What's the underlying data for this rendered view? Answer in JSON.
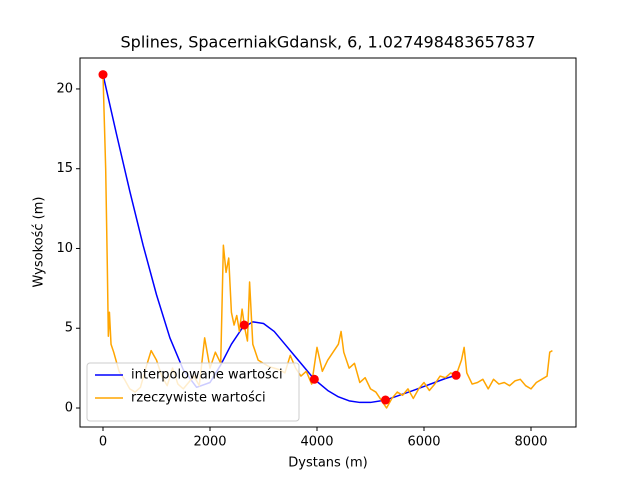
{
  "chart_data": {
    "type": "line",
    "title": "Splines, SpacerniakGdansk, 6, 1.027498483657837",
    "x_label": "Dystans (m)",
    "y_label": "Wysokość (m)",
    "xlim": [
      -430,
      8841
    ],
    "ylim": [
      -1.19,
      21.94
    ],
    "xticks": [
      0,
      2000,
      4000,
      6000,
      8000
    ],
    "yticks": [
      0,
      5,
      10,
      15,
      20
    ],
    "legend": "lower left",
    "series": [
      {
        "name": "interpolowane wartości",
        "color": "#0000ff",
        "type": "line",
        "x": [
          0,
          250,
          500,
          750,
          1000,
          1250,
          1500,
          1750,
          2000,
          2200,
          2400,
          2600,
          2800,
          3000,
          3200,
          3400,
          3600,
          3800,
          3950,
          4200,
          4400,
          4600,
          4800,
          5000,
          5280,
          5500,
          5800,
          6000,
          6200,
          6400,
          6600
        ],
        "values": [
          20.9,
          17.2,
          13.6,
          10.2,
          7.1,
          4.4,
          2.4,
          1.3,
          1.6,
          2.7,
          4.0,
          5.0,
          5.4,
          5.3,
          4.8,
          4.0,
          3.2,
          2.4,
          1.8,
          1.1,
          0.7,
          0.45,
          0.35,
          0.35,
          0.5,
          0.75,
          1.1,
          1.35,
          1.6,
          1.85,
          2.05
        ]
      },
      {
        "name": "rzeczywiste wartości",
        "color": "#ffa500",
        "type": "line",
        "x": [
          0,
          50,
          80,
          100,
          120,
          150,
          200,
          300,
          400,
          500,
          600,
          700,
          800,
          900,
          1000,
          1100,
          1200,
          1300,
          1400,
          1500,
          1600,
          1700,
          1800,
          1900,
          2000,
          2100,
          2200,
          2250,
          2300,
          2350,
          2400,
          2450,
          2500,
          2550,
          2600,
          2650,
          2700,
          2740,
          2800,
          2900,
          3000,
          3100,
          3200,
          3300,
          3400,
          3500,
          3600,
          3700,
          3800,
          3900,
          4000,
          4100,
          4200,
          4300,
          4400,
          4450,
          4500,
          4600,
          4700,
          4800,
          4900,
          5000,
          5100,
          5200,
          5300,
          5400,
          5500,
          5600,
          5700,
          5800,
          5900,
          6000,
          6100,
          6200,
          6300,
          6400,
          6500,
          6600,
          6700,
          6750,
          6800,
          6900,
          7000,
          7100,
          7200,
          7300,
          7400,
          7500,
          7600,
          7700,
          7800,
          7900,
          8000,
          8100,
          8200,
          8300,
          8350,
          8400
        ],
        "values": [
          20.9,
          15,
          9,
          4.5,
          6,
          4,
          3.5,
          2.3,
          1.8,
          1.2,
          1.0,
          1.3,
          2.5,
          3.6,
          3.0,
          2.0,
          1.4,
          2.5,
          1.5,
          1.2,
          1.6,
          2.0,
          1.4,
          4.4,
          2.5,
          3.5,
          2.8,
          10.2,
          8.5,
          9.4,
          6.0,
          5.2,
          5.8,
          4.8,
          6.2,
          5.0,
          4.2,
          7.9,
          4.0,
          3.0,
          2.8,
          2.6,
          2.5,
          2.4,
          2.2,
          3.3,
          2.5,
          2.0,
          2.3,
          1.5,
          3.8,
          2.3,
          3.0,
          3.5,
          4.0,
          4.8,
          3.5,
          2.5,
          2.8,
          1.6,
          1.9,
          1.2,
          1.0,
          0.5,
          0.0,
          0.6,
          1.0,
          0.8,
          1.2,
          0.6,
          1.2,
          1.6,
          1.1,
          1.5,
          2.0,
          1.9,
          2.2,
          2.05,
          3.0,
          3.8,
          2.2,
          1.5,
          1.6,
          1.8,
          1.2,
          1.8,
          1.5,
          1.6,
          1.4,
          1.7,
          1.8,
          1.4,
          1.2,
          1.6,
          1.8,
          2.0,
          3.5,
          3.6
        ]
      },
      {
        "color": "#ff0000",
        "type": "scatter",
        "x": [
          0,
          2640,
          3950,
          5280,
          6600
        ],
        "values": [
          20.9,
          5.2,
          1.8,
          0.5,
          2.05
        ]
      }
    ]
  }
}
